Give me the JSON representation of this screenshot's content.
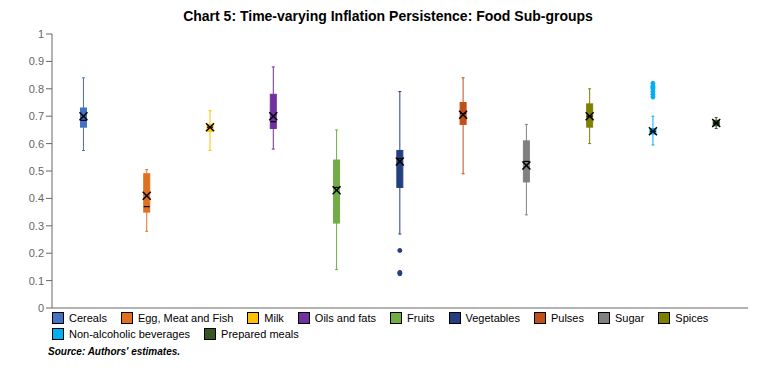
{
  "chart_data": {
    "type": "box",
    "title": "Chart 5: Time-varying Inflation Persistence: Food Sub-groups",
    "source": "Source: Authors' estimates.",
    "categories": [
      "Cereals",
      "Egg, Meat and Fish",
      "Milk",
      "Oils and fats",
      "Fruits",
      "Vegetables",
      "Pulses",
      "Sugar",
      "Spices",
      "Non-alcoholic beverages",
      "Prepared meals"
    ],
    "colors": [
      "#4472C4",
      "#E07020",
      "#FFC000",
      "#7030A0",
      "#70AD47",
      "#243F80",
      "#C05018",
      "#808080",
      "#808000",
      "#00B0F0",
      "#375623"
    ],
    "boxes": [
      {
        "q1": 0.66,
        "median": 0.685,
        "q3": 0.73,
        "mean": 0.7,
        "whislo": 0.575,
        "whishi": 0.84,
        "fliers": []
      },
      {
        "q1": 0.35,
        "median": 0.37,
        "q3": 0.49,
        "mean": 0.41,
        "whislo": 0.28,
        "whishi": 0.505,
        "fliers": []
      },
      {
        "q1": 0.645,
        "median": 0.66,
        "q3": 0.67,
        "mean": 0.66,
        "whislo": 0.575,
        "whishi": 0.72,
        "fliers": []
      },
      {
        "q1": 0.655,
        "median": 0.68,
        "q3": 0.78,
        "mean": 0.7,
        "whislo": 0.58,
        "whishi": 0.88,
        "fliers": []
      },
      {
        "q1": 0.31,
        "median": 0.44,
        "q3": 0.54,
        "mean": 0.43,
        "whislo": 0.14,
        "whishi": 0.65,
        "fliers": []
      },
      {
        "q1": 0.44,
        "median": 0.545,
        "q3": 0.575,
        "mean": 0.535,
        "whislo": 0.27,
        "whishi": 0.79,
        "fliers": [
          0.21,
          0.13,
          0.125
        ]
      },
      {
        "q1": 0.67,
        "median": 0.71,
        "q3": 0.75,
        "mean": 0.705,
        "whislo": 0.49,
        "whishi": 0.84,
        "fliers": []
      },
      {
        "q1": 0.46,
        "median": 0.535,
        "q3": 0.61,
        "mean": 0.52,
        "whislo": 0.34,
        "whishi": 0.67,
        "fliers": []
      },
      {
        "q1": 0.66,
        "median": 0.7,
        "q3": 0.745,
        "mean": 0.7,
        "whislo": 0.6,
        "whishi": 0.8,
        "fliers": []
      },
      {
        "q1": 0.635,
        "median": 0.645,
        "q3": 0.655,
        "mean": 0.645,
        "whislo": 0.595,
        "whishi": 0.7,
        "fliers": [
          0.77,
          0.78,
          0.79,
          0.8,
          0.805,
          0.81,
          0.82
        ]
      },
      {
        "q1": 0.665,
        "median": 0.675,
        "q3": 0.685,
        "mean": 0.675,
        "whislo": 0.655,
        "whishi": 0.695,
        "fliers": []
      }
    ],
    "ylim": [
      0,
      1.0
    ],
    "yticks": [
      0,
      0.1,
      0.2,
      0.3,
      0.4,
      0.5,
      0.6,
      0.7,
      0.8,
      0.9,
      1
    ],
    "tick_labels": "y",
    "grid": false,
    "legend": "bottom"
  }
}
